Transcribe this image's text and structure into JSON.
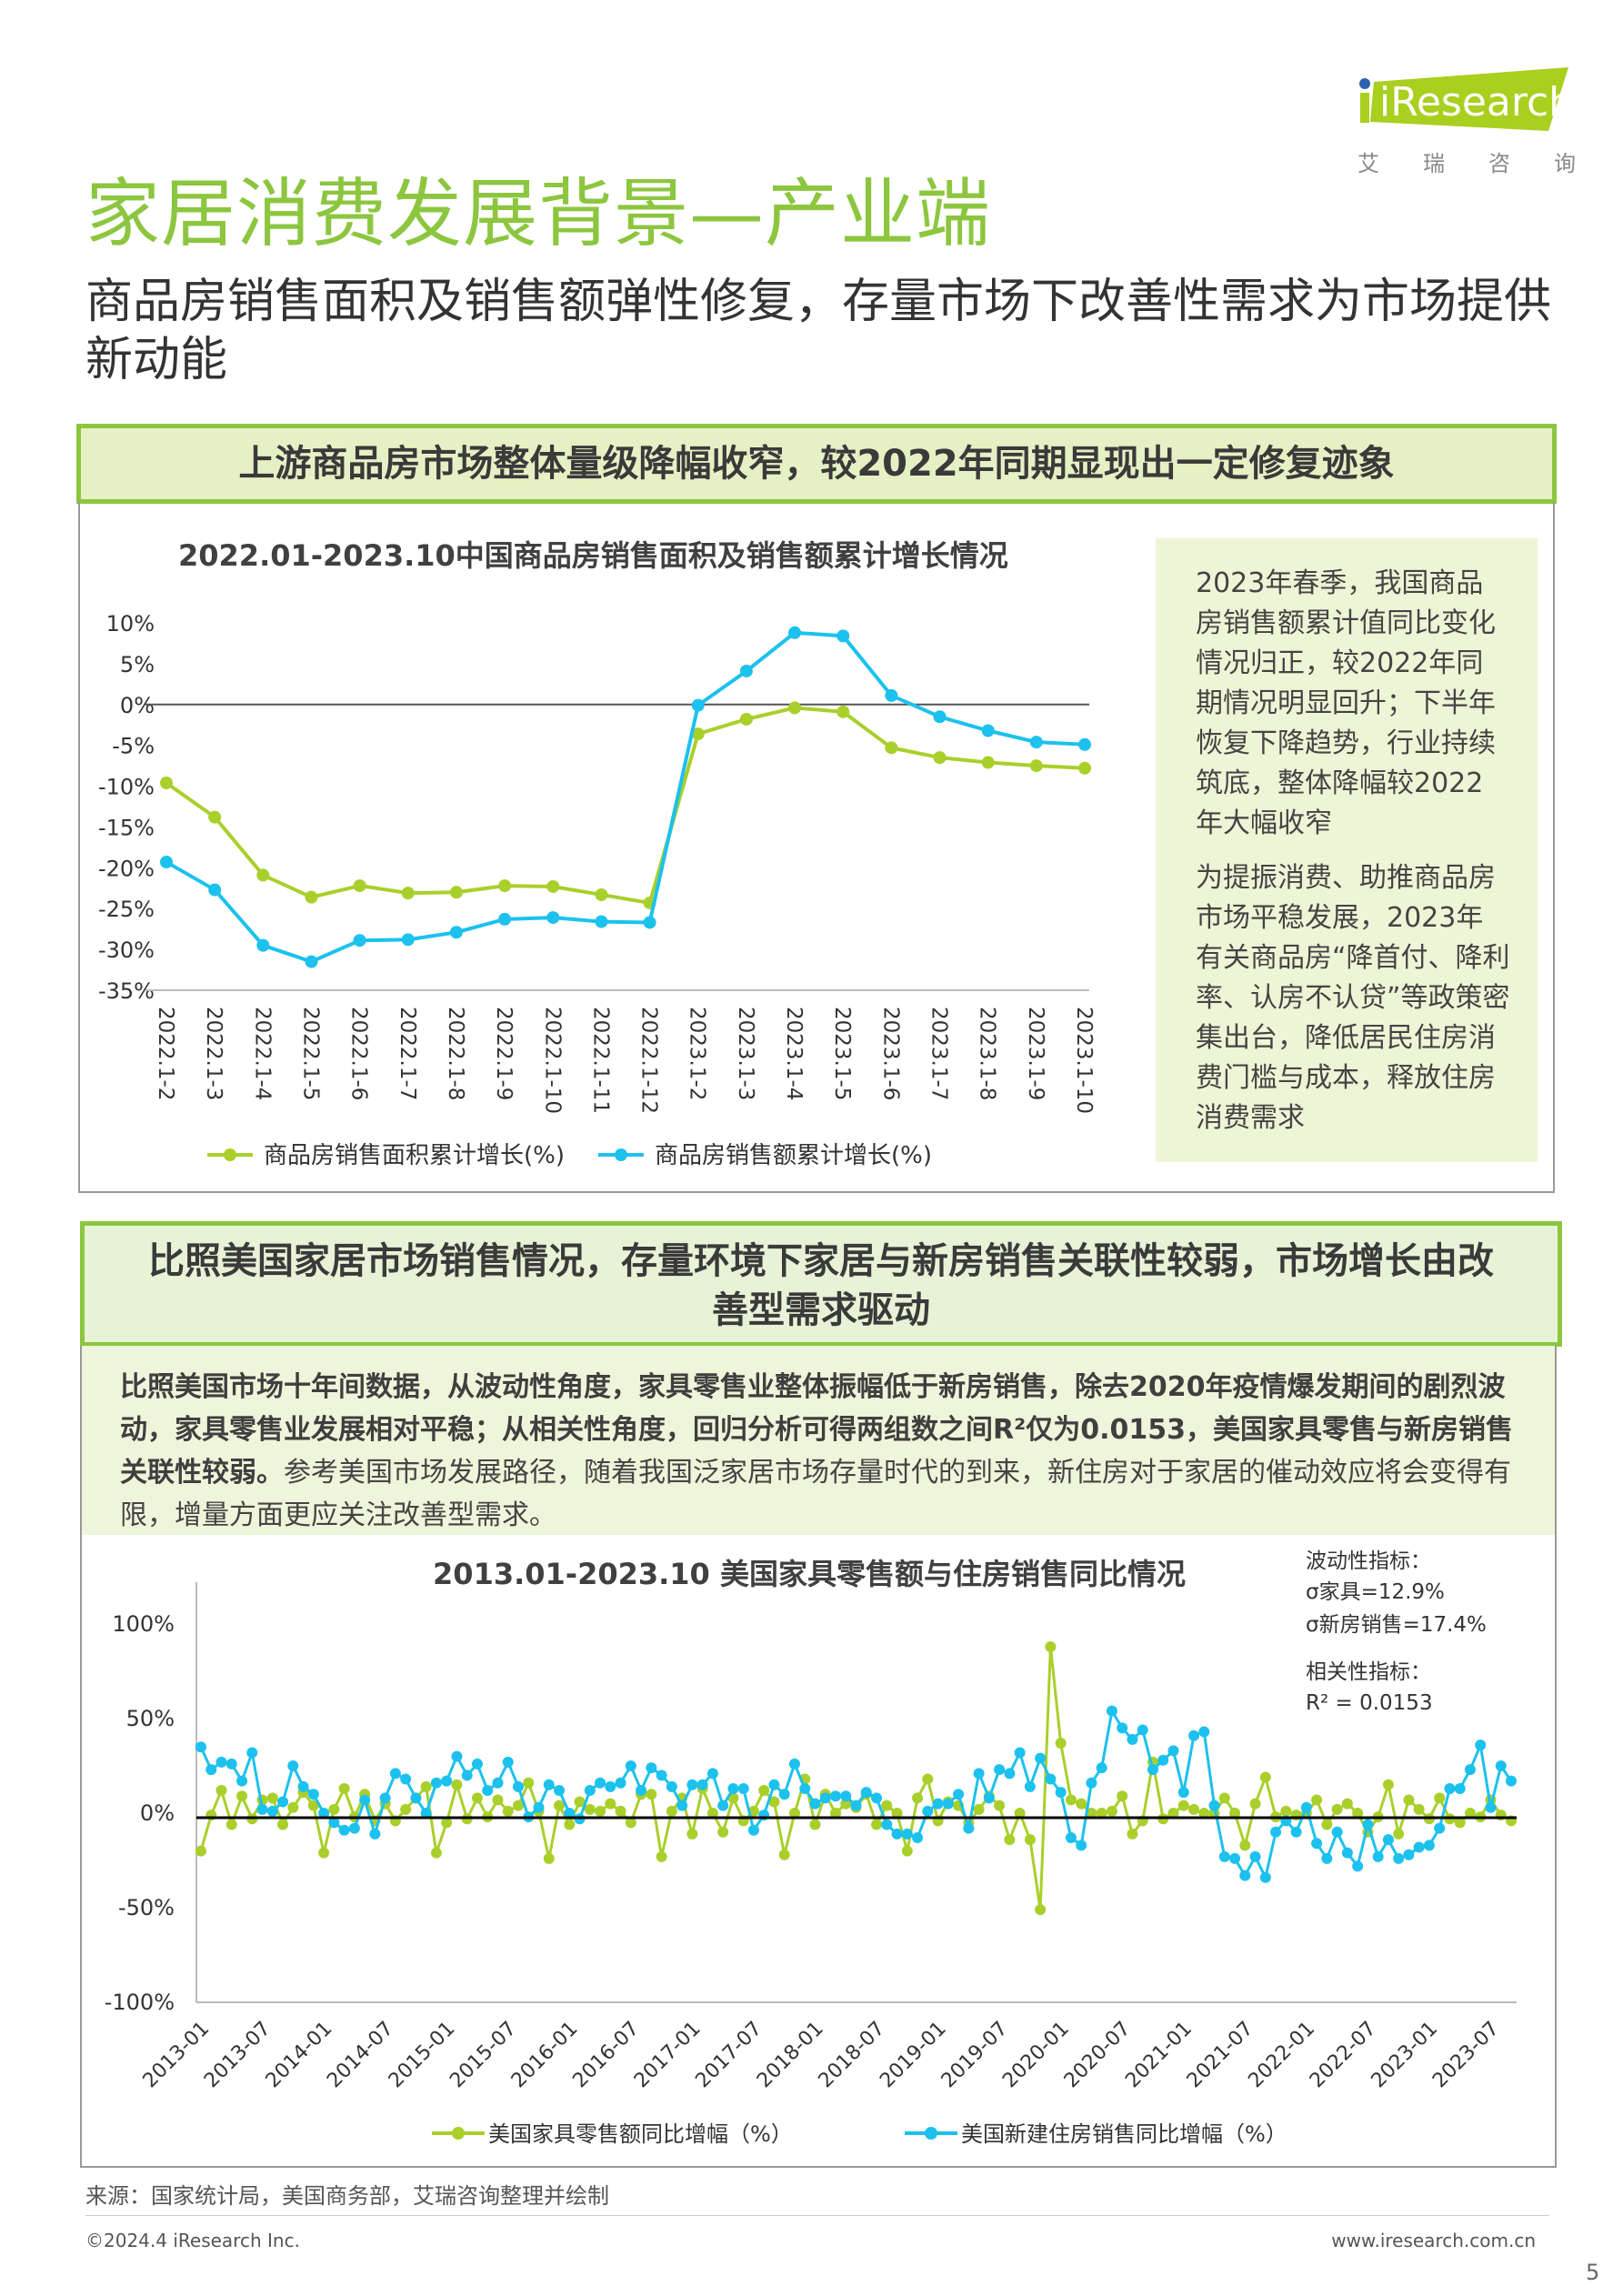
{
  "brand": {
    "logo_text": "iResearch",
    "logo_cn": [
      "艾",
      "瑞",
      "咨",
      "询"
    ],
    "accent": "#a9cf1f"
  },
  "page": {
    "title": "家居消费发展背景—产业端",
    "subtitle": "商品房销售面积及销售额弹性修复，存量市场下改善性需求为市场提供新动能"
  },
  "section1": {
    "header": "上游商品房市场整体量级降幅收窄，较2022年同期显现出一定修复迹象",
    "panel": [
      "2023年春季，我国商品房销售额累计值同比变化情况归正，较2022年同期情况明显回升；下半年恢复下降趋势，行业持续筑底，整体降幅较2022年大幅收窄",
      "为提振消费、助推商品房市场平稳发展，2023年有关商品房“降首付、降利率、认房不认贷”等政策密集出台，降低居民住房消费门槛与成本，释放住房消费需求"
    ]
  },
  "section2": {
    "header_line1": "比照美国家居市场销售情况，存量环境下家居与新房销售关联性较弱，市场增长由改",
    "header_line2": "善型需求驱动",
    "para_bold": "比照美国市场十年间数据，从波动性角度，家具零售业整体振幅低于新房销售，除去2020年疫情爆发期间的剧烈波动，家具零售业发展相对平稳；从相关性角度，回归分析可得两组数之间R²仅为0.0153，美国家具零售与新房销售关联性较弱。",
    "para_normal": "参考美国市场发展路径，随着我国泛家居市场存量时代的到来，新住房对于家居的催动效应将会变得有限，增量方面更应关注改善型需求。",
    "annotations": [
      "波动性指标：",
      "σ家具=12.9%",
      "σ新房销售=17.4%",
      "相关性指标：",
      "R² = 0.0153"
    ]
  },
  "footer": {
    "source": "来源：国家统计局，美国商务部，艾瑞咨询整理并绘制",
    "copyright": "©2024.4 iResearch Inc.",
    "website": "www.iresearch.com.cn",
    "page_number": "5"
  },
  "chart_data": [
    {
      "type": "line",
      "title": "2022.01-2023.10中国商品房销售面积及销售额累计增长情况",
      "categories": [
        "2022.1-2",
        "2022.1-3",
        "2022.1-4",
        "2022.1-5",
        "2022.1-6",
        "2022.1-7",
        "2022.1-8",
        "2022.1-9",
        "2022.1-10",
        "2022.1-11",
        "2022.1-12",
        "2023.1-2",
        "2023.1-3",
        "2023.1-4",
        "2023.1-5",
        "2023.1-6",
        "2023.1-7",
        "2023.1-8",
        "2023.1-9",
        "2023.1-10"
      ],
      "ylim": [
        -35,
        10
      ],
      "yticks": [
        10,
        5,
        0,
        -5,
        -10,
        -15,
        -20,
        -25,
        -30,
        -35
      ],
      "ytick_labels": [
        "10%",
        "5%",
        "0%",
        "-5%",
        "-10%",
        "-15%",
        "-20%",
        "-25%",
        "-30%",
        "-35%"
      ],
      "legend_position": "bottom",
      "series": [
        {
          "name": "商品房销售面积累计增长(%)",
          "color": "#a9cf2a",
          "values": [
            -9.6,
            -13.8,
            -20.9,
            -23.6,
            -22.2,
            -23.1,
            -23.0,
            -22.2,
            -22.3,
            -23.3,
            -24.3,
            -3.6,
            -1.8,
            -0.4,
            -0.9,
            -5.3,
            -6.5,
            -7.1,
            -7.5,
            -7.8
          ]
        },
        {
          "name": "商品房销售额累计增长(%)",
          "color": "#1cc1ee",
          "values": [
            -19.3,
            -22.7,
            -29.5,
            -31.5,
            -28.9,
            -28.8,
            -27.9,
            -26.3,
            -26.1,
            -26.6,
            -26.7,
            -0.1,
            4.1,
            8.8,
            8.4,
            1.1,
            -1.5,
            -3.2,
            -4.6,
            -4.9
          ]
        }
      ]
    },
    {
      "type": "line",
      "title": "2013.01-2023.10 美国家具零售额与住房销售同比情况",
      "x_start": "2013-01",
      "xtick_labels": [
        "2013-01",
        "2013-07",
        "2014-01",
        "2014-07",
        "2015-01",
        "2015-07",
        "2016-01",
        "2016-07",
        "2017-01",
        "2017-07",
        "2018-01",
        "2018-07",
        "2019-01",
        "2019-07",
        "2020-01",
        "2020-07",
        "2021-01",
        "2021-07",
        "2022-01",
        "2022-07",
        "2023-01",
        "2023-07"
      ],
      "ylim": [
        -100,
        100
      ],
      "yticks": [
        100,
        50,
        0,
        -50,
        -100
      ],
      "ytick_labels": [
        "100%",
        "50%",
        "0%",
        "-50%",
        "-100%"
      ],
      "legend_position": "bottom",
      "series": [
        {
          "name": "美国家具零售额同比增幅（%）",
          "color": "#a9cf2a",
          "values": [
            -20,
            -1,
            12,
            -6,
            9,
            -3,
            7,
            8,
            -6,
            3,
            11,
            4,
            -21,
            2,
            13,
            -2,
            10,
            -4,
            5,
            -4,
            2,
            8,
            14,
            -21,
            -5,
            15,
            -3,
            8,
            -2,
            7,
            1,
            4,
            16,
            1,
            -24,
            4,
            -6,
            6,
            2,
            1,
            5,
            1,
            -5,
            10,
            10,
            -23,
            1,
            8,
            -11,
            13,
            0,
            -10,
            8,
            -4,
            1,
            12,
            6,
            -22,
            0,
            18,
            -6,
            10,
            0,
            5,
            3,
            10,
            -6,
            4,
            0,
            -20,
            8,
            18,
            -4,
            6,
            4,
            -5,
            2,
            9,
            4,
            -14,
            0,
            -14,
            -51,
            88,
            37,
            7,
            5,
            0,
            0,
            1,
            9,
            -11,
            -4,
            27,
            -3,
            0,
            4,
            2,
            0,
            0,
            8,
            0,
            -17,
            5,
            19,
            -2,
            1,
            -1,
            0,
            7,
            -6,
            2,
            5,
            0,
            -10,
            -2,
            15,
            -11,
            7,
            2,
            -3,
            8,
            -3,
            -5,
            0,
            -2,
            7,
            -1,
            -4
          ]
        },
        {
          "name": "美国新建住房销售同比增幅（%）",
          "color": "#1cc1ee",
          "values": [
            35,
            23,
            27,
            26,
            17,
            32,
            2,
            1,
            6,
            25,
            14,
            10,
            0,
            -5,
            -9,
            -8,
            7,
            -11,
            8,
            21,
            18,
            8,
            0,
            16,
            17,
            30,
            20,
            26,
            12,
            16,
            27,
            14,
            -2,
            3,
            15,
            12,
            0,
            -3,
            12,
            16,
            14,
            16,
            25,
            12,
            24,
            20,
            14,
            4,
            15,
            15,
            21,
            4,
            13,
            13,
            -9,
            -1,
            15,
            10,
            26,
            13,
            5,
            8,
            9,
            9,
            4,
            11,
            8,
            -6,
            -11,
            -11,
            -13,
            1,
            5,
            5,
            10,
            -8,
            21,
            8,
            23,
            21,
            32,
            14,
            29,
            18,
            11,
            -13,
            -17,
            16,
            24,
            54,
            45,
            39,
            44,
            23,
            28,
            33,
            11,
            41,
            43,
            4,
            -23,
            -24,
            -33,
            -23,
            -34,
            -10,
            -4,
            -10,
            3,
            -16,
            -24,
            -10,
            -21,
            -28,
            -6,
            -23,
            -14,
            -24,
            -22,
            -18,
            -17,
            -8,
            13,
            13,
            23,
            36,
            3,
            25,
            17
          ]
        }
      ]
    }
  ]
}
